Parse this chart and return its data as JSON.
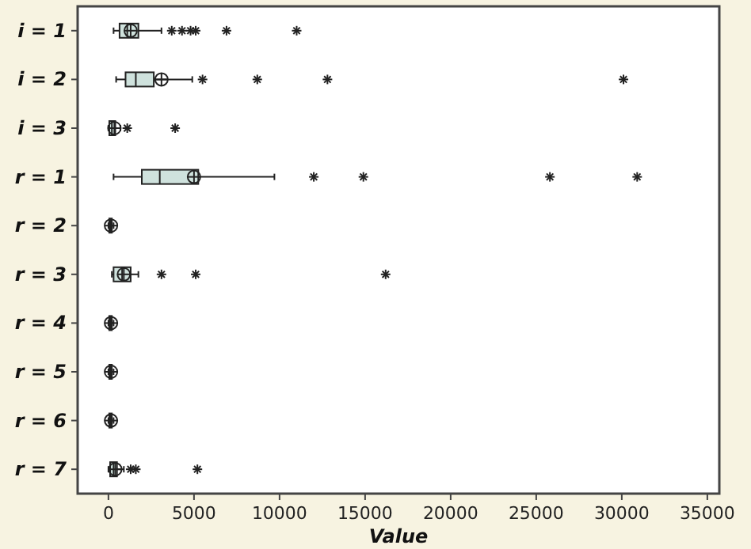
{
  "chart_data": {
    "type": "box",
    "orientation": "horizontal",
    "xlabel": "Value",
    "color": "#cfe2dd",
    "categories": [
      "i = 1",
      "i = 2",
      "i = 3",
      "r = 1",
      "r = 2",
      "r = 3",
      "r = 4",
      "r = 5",
      "r = 6",
      "r = 7"
    ],
    "boxes": [
      {
        "low": 300,
        "q1": 650,
        "median": 1100,
        "q3": 1750,
        "high": 3100,
        "mean": 1300,
        "outliers": [
          3700,
          4300,
          4800,
          5100,
          6900,
          11000
        ]
      },
      {
        "low": 450,
        "q1": 1000,
        "median": 1600,
        "q3": 2650,
        "high": 4900,
        "mean": 3100,
        "outliers": [
          5500,
          8700,
          12800,
          30100
        ]
      },
      {
        "low": 0,
        "q1": 50,
        "median": 200,
        "q3": 400,
        "high": 700,
        "mean": 350,
        "outliers": [
          1100,
          3900
        ]
      },
      {
        "low": 300,
        "q1": 1950,
        "median": 3000,
        "q3": 5250,
        "high": 9700,
        "mean": 5000,
        "outliers": [
          12000,
          14900,
          25800,
          30900
        ]
      },
      {
        "low": 0,
        "q1": 50,
        "median": 100,
        "q3": 200,
        "high": 300,
        "mean": 150
      },
      {
        "low": 200,
        "q1": 300,
        "median": 800,
        "q3": 1300,
        "high": 1750,
        "mean": 900,
        "outliers": [
          3100,
          5100,
          16200
        ]
      },
      {
        "low": 0,
        "q1": 50,
        "median": 100,
        "q3": 200,
        "high": 300,
        "mean": 150
      },
      {
        "low": 0,
        "q1": 50,
        "median": 100,
        "q3": 200,
        "high": 300,
        "mean": 150
      },
      {
        "low": 0,
        "q1": 50,
        "median": 100,
        "q3": 200,
        "high": 300,
        "mean": 150
      },
      {
        "low": 0,
        "q1": 100,
        "median": 300,
        "q3": 500,
        "high": 900,
        "mean": 400,
        "outliers": [
          1300,
          1600,
          5200
        ]
      }
    ],
    "xlim": [
      -1800,
      35700
    ],
    "xticks": [
      0,
      5000,
      10000,
      15000,
      20000,
      25000,
      30000,
      35000
    ]
  }
}
